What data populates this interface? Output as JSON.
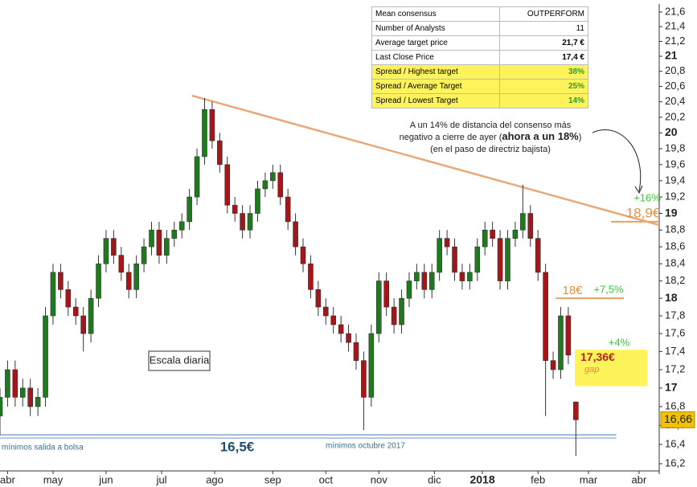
{
  "chart_data": {
    "type": "candlestick",
    "log": true,
    "up_color": "#1f7a1f",
    "down_color": "#a3161a",
    "xlim": [
      0,
      261
    ],
    "ylim": [
      16.2,
      21.6
    ],
    "xticks": [
      {
        "value": 3,
        "label": "abr"
      },
      {
        "value": 21,
        "label": "may"
      },
      {
        "value": 42,
        "label": "jun"
      },
      {
        "value": 64,
        "label": "jul"
      },
      {
        "value": 85,
        "label": "ago"
      },
      {
        "value": 108,
        "label": "sep"
      },
      {
        "value": 129,
        "label": "oct"
      },
      {
        "value": 150,
        "label": "nov"
      },
      {
        "value": 172,
        "label": "dic"
      },
      {
        "value": 191,
        "label": "2018"
      },
      {
        "value": 213,
        "label": "feb"
      },
      {
        "value": 233,
        "label": "mar"
      },
      {
        "value": 253,
        "label": "abr"
      }
    ],
    "yticks": [
      {
        "value": 16.2,
        "label": "16,2"
      },
      {
        "value": 16.4,
        "label": "16,4"
      },
      {
        "value": 16.6,
        "label": "16,6"
      },
      {
        "value": 16.8,
        "label": "16,8"
      },
      17,
      {
        "value": 17.2,
        "label": "17,2"
      },
      {
        "value": 17.4,
        "label": "17,4"
      },
      {
        "value": 17.6,
        "label": "17,6"
      },
      {
        "value": 17.8,
        "label": "17,8"
      },
      18,
      {
        "value": 18.2,
        "label": "18,2"
      },
      {
        "value": 18.4,
        "label": "18,4"
      },
      {
        "value": 18.6,
        "label": "18,6"
      },
      {
        "value": 18.8,
        "label": "18,8"
      },
      19,
      {
        "value": 19.2,
        "label": "19,2"
      },
      {
        "value": 19.4,
        "label": "19,4"
      },
      {
        "value": 19.6,
        "label": "19,6"
      },
      {
        "value": 19.8,
        "label": "19,8"
      },
      20,
      {
        "value": 20.2,
        "label": "20,2"
      },
      {
        "value": 20.4,
        "label": "20,4"
      },
      {
        "value": 20.6,
        "label": "20,6"
      },
      {
        "value": 20.8,
        "label": "20,8"
      },
      21,
      {
        "value": 21.2,
        "label": "21,2"
      },
      {
        "value": 21.4,
        "label": "21,4"
      },
      {
        "value": 21.6,
        "label": "21,6"
      }
    ],
    "x": [
      0,
      3,
      6,
      9,
      12,
      15,
      18,
      21,
      24,
      27,
      30,
      33,
      36,
      39,
      42,
      45,
      48,
      51,
      54,
      57,
      60,
      63,
      66,
      69,
      72,
      75,
      78,
      81,
      84,
      87,
      90,
      93,
      96,
      99,
      102,
      105,
      108,
      111,
      114,
      117,
      120,
      123,
      126,
      129,
      132,
      135,
      138,
      141,
      144,
      147,
      150,
      153,
      156,
      159,
      162,
      165,
      168,
      171,
      174,
      177,
      180,
      183,
      186,
      189,
      192,
      195,
      198,
      201,
      204,
      207,
      210,
      213,
      216,
      219,
      222,
      225,
      228
    ],
    "open": [
      16.7,
      16.9,
      17.2,
      16.9,
      17.0,
      16.8,
      16.9,
      17.8,
      18.3,
      18.1,
      17.9,
      17.8,
      17.6,
      18.0,
      18.4,
      18.7,
      18.5,
      18.3,
      18.1,
      18.4,
      18.6,
      18.8,
      18.5,
      18.7,
      18.8,
      18.9,
      19.2,
      19.7,
      20.3,
      19.9,
      19.6,
      19.1,
      19.0,
      18.8,
      19.0,
      19.3,
      19.4,
      19.5,
      19.2,
      18.9,
      18.6,
      18.4,
      18.1,
      17.9,
      17.8,
      17.7,
      17.6,
      17.5,
      17.3,
      16.9,
      17.6,
      18.2,
      17.9,
      17.7,
      18.0,
      18.2,
      18.3,
      18.1,
      18.3,
      18.7,
      18.6,
      18.3,
      18.2,
      18.3,
      18.6,
      18.8,
      18.7,
      18.2,
      18.7,
      18.8,
      19.0,
      18.7,
      18.3,
      17.3,
      17.2,
      17.8,
      16.85
    ],
    "high": [
      17.0,
      17.3,
      17.3,
      17.1,
      17.1,
      17.0,
      17.9,
      18.4,
      18.4,
      18.2,
      18.0,
      17.9,
      18.1,
      18.5,
      18.8,
      18.8,
      18.6,
      18.4,
      18.5,
      18.7,
      18.9,
      18.9,
      18.8,
      18.9,
      19.0,
      19.3,
      19.8,
      20.45,
      20.4,
      20.0,
      19.7,
      19.2,
      19.1,
      19.1,
      19.4,
      19.5,
      19.6,
      19.6,
      19.3,
      19.0,
      18.7,
      18.5,
      18.2,
      18.0,
      17.9,
      17.8,
      17.7,
      17.6,
      17.4,
      17.7,
      18.3,
      18.3,
      18.0,
      18.1,
      18.3,
      18.4,
      18.4,
      18.4,
      18.8,
      18.8,
      18.7,
      18.4,
      18.4,
      18.7,
      18.9,
      18.9,
      18.8,
      18.8,
      18.9,
      19.35,
      19.1,
      18.8,
      18.4,
      17.4,
      17.9,
      17.9,
      16.85
    ],
    "low": [
      16.5,
      16.8,
      16.8,
      16.8,
      16.7,
      16.7,
      16.8,
      17.7,
      18.0,
      17.8,
      17.7,
      17.4,
      17.5,
      17.9,
      18.3,
      18.4,
      18.2,
      18.0,
      18.0,
      18.3,
      18.5,
      18.4,
      18.4,
      18.6,
      18.7,
      18.8,
      19.1,
      19.6,
      19.8,
      19.5,
      19.0,
      18.9,
      18.7,
      18.7,
      18.9,
      19.2,
      19.3,
      19.1,
      18.8,
      18.5,
      18.3,
      18.0,
      17.8,
      17.7,
      17.6,
      17.5,
      17.4,
      17.2,
      16.55,
      16.8,
      17.5,
      17.8,
      17.6,
      17.6,
      17.9,
      18.1,
      18.0,
      18.0,
      18.2,
      18.5,
      18.2,
      18.1,
      18.1,
      18.2,
      18.5,
      18.6,
      18.1,
      18.1,
      18.6,
      18.7,
      18.6,
      18.2,
      16.7,
      17.1,
      17.1,
      17.26,
      16.28
    ],
    "close": [
      16.9,
      17.2,
      16.9,
      17.0,
      16.8,
      16.9,
      17.8,
      18.3,
      18.1,
      17.9,
      17.8,
      17.6,
      18.0,
      18.4,
      18.7,
      18.5,
      18.3,
      18.1,
      18.4,
      18.6,
      18.8,
      18.5,
      18.7,
      18.8,
      18.9,
      19.2,
      19.7,
      20.3,
      19.9,
      19.6,
      19.1,
      19.0,
      18.8,
      19.0,
      19.3,
      19.4,
      19.5,
      19.2,
      18.9,
      18.6,
      18.4,
      18.1,
      17.9,
      17.8,
      17.7,
      17.6,
      17.5,
      17.3,
      16.9,
      17.6,
      18.2,
      17.9,
      17.7,
      18.0,
      18.2,
      18.3,
      18.1,
      18.3,
      18.7,
      18.6,
      18.3,
      18.2,
      18.3,
      18.6,
      18.8,
      18.7,
      18.2,
      18.7,
      18.8,
      19.0,
      18.7,
      18.3,
      17.3,
      17.2,
      17.8,
      17.36,
      16.66
    ],
    "trendline": {
      "x": [
        76,
        261
      ],
      "y": [
        20.48,
        18.86
      ],
      "color": "#e8a878"
    },
    "levels": [
      {
        "value": 18.9,
        "x": [
          242,
          261
        ],
        "label": "18,9€",
        "change": "+16%",
        "color": "#e8a060"
      },
      {
        "value": 18,
        "x": [
          220,
          247
        ],
        "label": "18€",
        "change": "+7,5%",
        "color": "#e8a060"
      },
      {
        "value": 16.5,
        "x": [
          0,
          244
        ],
        "label": "16,5€",
        "color": "#9db8d8"
      }
    ],
    "gap": {
      "range": [
        17.02,
        17.42
      ],
      "label": "17,36€",
      "note": "gap",
      "change": "+4%",
      "color": "#fff35c"
    },
    "last_price": {
      "value": 16.66,
      "label": "16,66"
    },
    "notes": {
      "scale": "Escala diaria",
      "ipo_low": "mínimos salida a bolsa",
      "oct_low": "mínimos octubre 2017"
    },
    "annotation": {
      "line1": "A un 14% de distancia del consenso más",
      "line2_pre": "negativo a cierre de ayer (",
      "line2_bold": "ahora a un 18%",
      "line2_post": ")",
      "line3": "(en el paso de directriz bajista)"
    }
  },
  "table": {
    "rows": [
      [
        "Mean consensus",
        "OUTPERFORM"
      ],
      [
        "Number of Analysts",
        "11"
      ],
      [
        "Average target price",
        "21,7 €"
      ],
      [
        "Last Close Price",
        "17,4 €"
      ],
      [
        "Spread / Highest target",
        "38%"
      ],
      [
        "Spread / Average Target",
        "25%"
      ],
      [
        "Spread / Lowest Target",
        "14%"
      ]
    ]
  }
}
